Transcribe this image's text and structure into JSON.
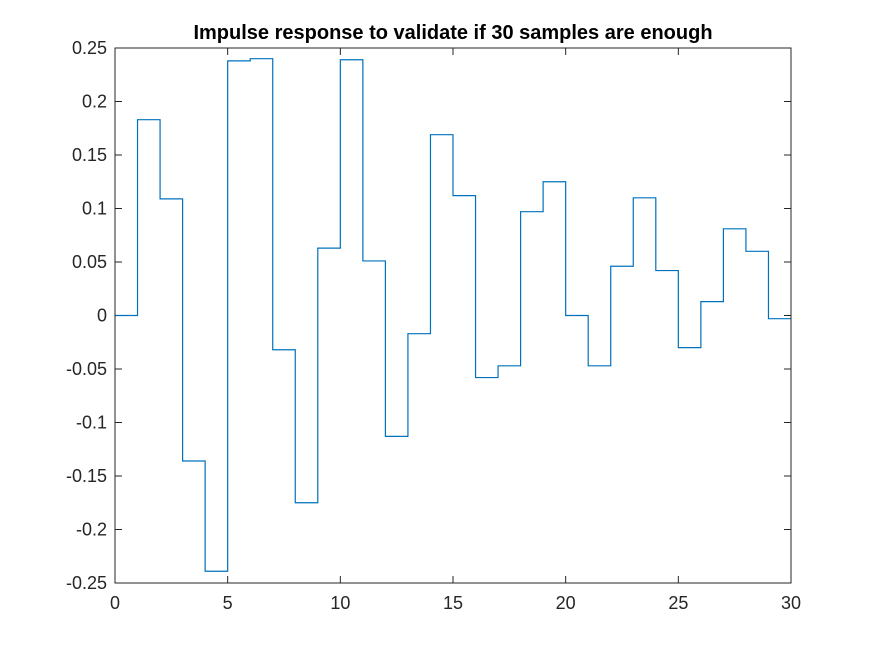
{
  "chart_data": {
    "type": "line",
    "step": true,
    "title": "Impulse response to validate if 30 samples are enough",
    "xlabel": "",
    "ylabel": "",
    "xlim": [
      0,
      30
    ],
    "ylim": [
      -0.25,
      0.25
    ],
    "xticks": [
      0,
      5,
      10,
      15,
      20,
      25,
      30
    ],
    "xtick_labels": [
      "0",
      "5",
      "10",
      "15",
      "20",
      "25",
      "30"
    ],
    "yticks": [
      0.25,
      0.2,
      0.15,
      0.1,
      0.05,
      0,
      -0.05,
      -0.1,
      -0.15,
      -0.2,
      -0.25
    ],
    "ytick_labels": [
      "0.25",
      "0.2",
      "0.15",
      "0.1",
      "0.05",
      "0",
      "-0.05",
      "-0.1",
      "-0.15",
      "-0.2",
      "-0.25"
    ],
    "grid": false,
    "line_color": "#0072BD",
    "x": [
      0,
      1,
      2,
      3,
      4,
      5,
      6,
      7,
      8,
      9,
      10,
      11,
      12,
      13,
      14,
      15,
      16,
      17,
      18,
      19,
      20,
      21,
      22,
      23,
      24,
      25,
      26,
      27,
      28,
      29
    ],
    "values": [
      0,
      0.183,
      0.109,
      -0.136,
      -0.239,
      0.238,
      0.24,
      -0.032,
      -0.175,
      0.063,
      0.239,
      0.051,
      -0.113,
      -0.017,
      0.169,
      0.112,
      -0.058,
      -0.047,
      0.097,
      0.125,
      0,
      -0.047,
      0.046,
      0.11,
      0.042,
      -0.03,
      0.013,
      0.081,
      0.06,
      -0.003
    ]
  }
}
